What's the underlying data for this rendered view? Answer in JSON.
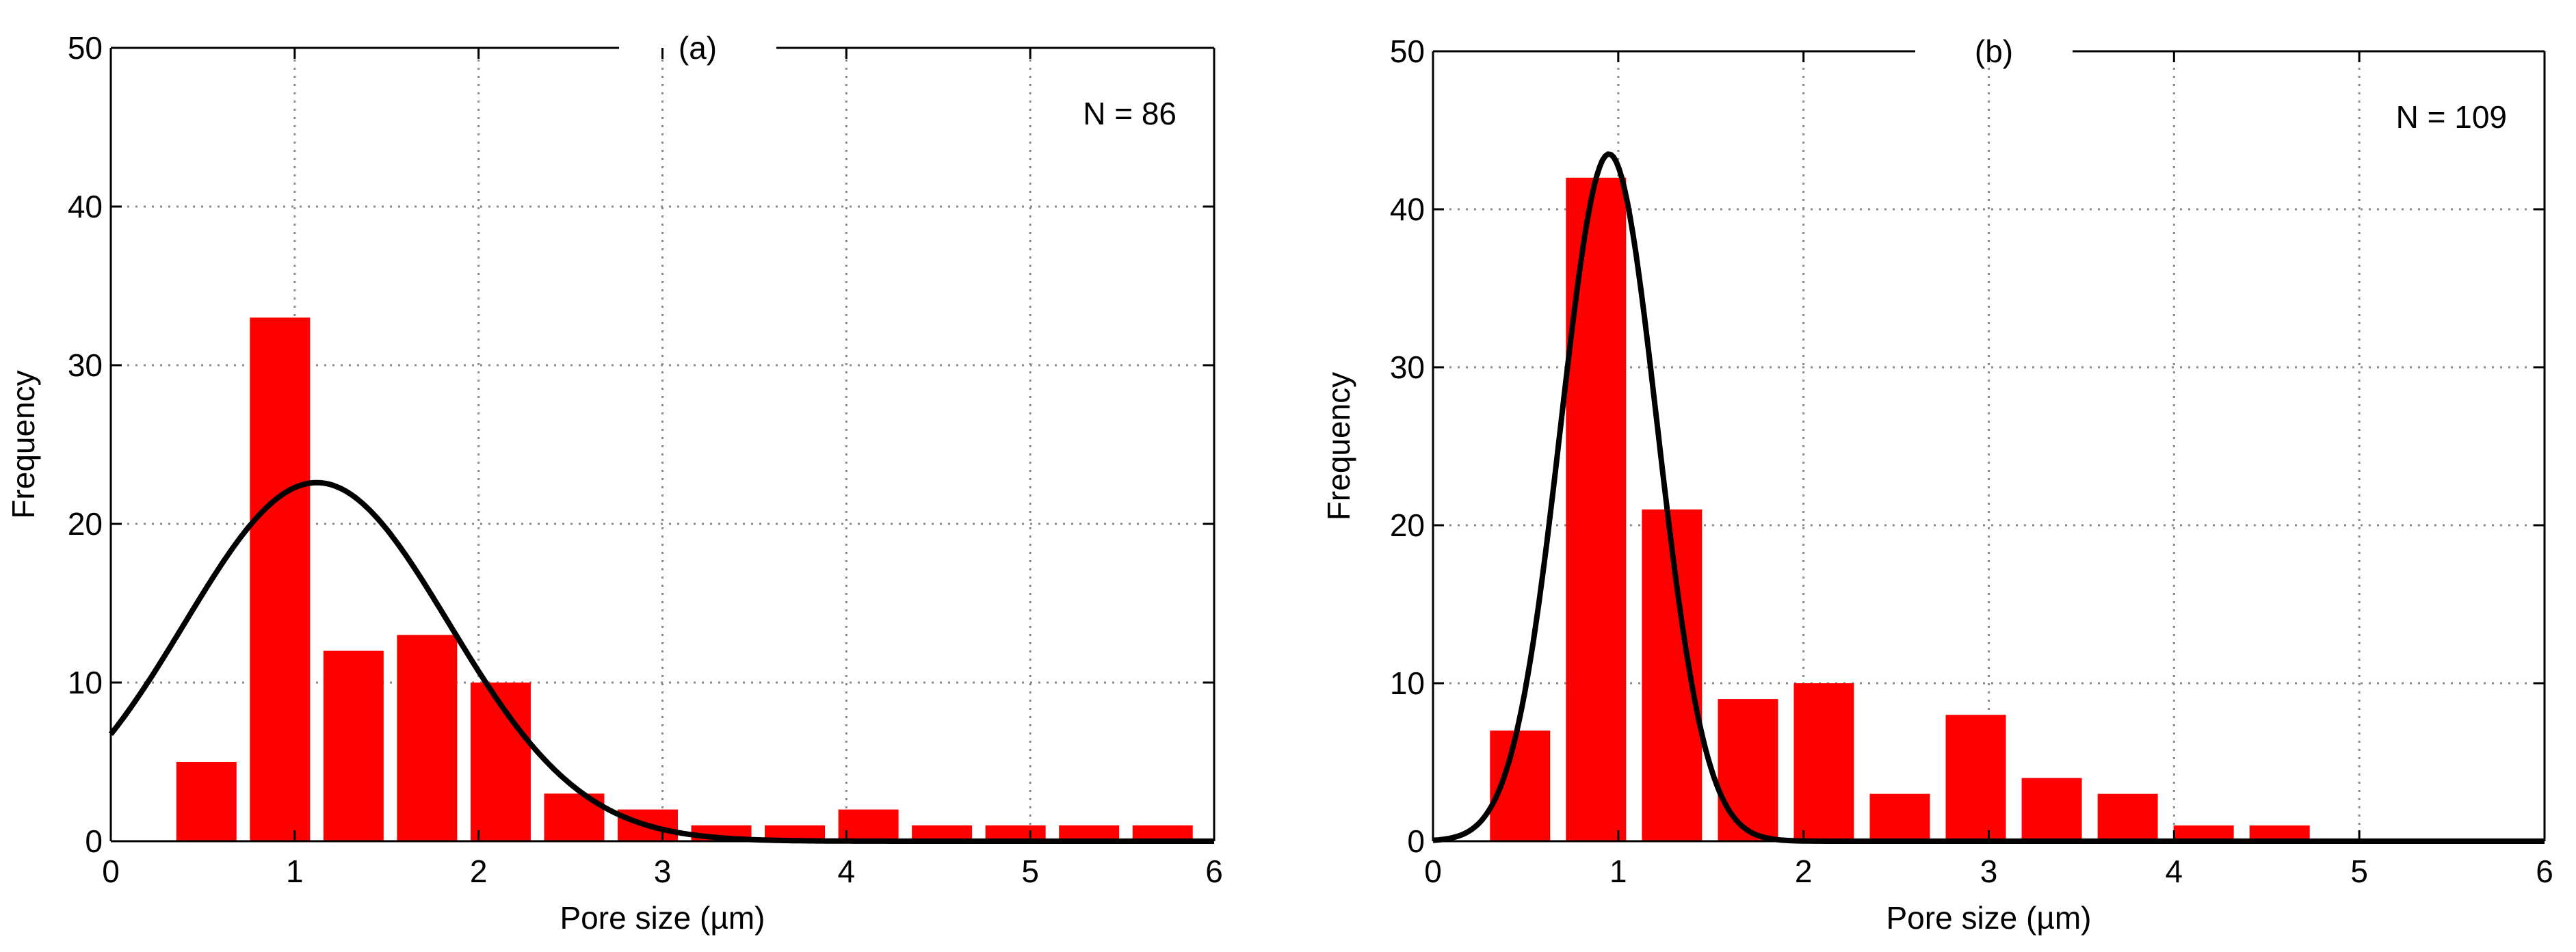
{
  "chart_data": [
    {
      "type": "bar",
      "title": "(a)",
      "annotation": "N = 86",
      "xlabel": "Pore size (µm)",
      "ylabel": "Frequency",
      "xlim": [
        0,
        6
      ],
      "ylim": [
        0,
        50
      ],
      "xticks": [
        "0",
        "1",
        "2",
        "3",
        "4",
        "5",
        "6"
      ],
      "yticks": [
        "0",
        "10",
        "20",
        "30",
        "40",
        "50"
      ],
      "grid": true,
      "bar_color": "#ff0000",
      "curve_color": "#000000",
      "bars": {
        "x": [
          0.52,
          0.92,
          1.32,
          1.72,
          2.12,
          2.52,
          2.92,
          3.32,
          3.72,
          4.12,
          4.52,
          4.92,
          5.32,
          5.72
        ],
        "values": [
          5,
          33,
          12,
          13,
          10,
          3,
          2,
          1,
          1,
          2,
          1,
          1,
          1,
          1
        ]
      },
      "curve": {
        "type": "normal-fit",
        "mean": 1.12,
        "sd": 0.72,
        "peak": 22.6
      }
    },
    {
      "type": "bar",
      "title": "(b)",
      "annotation": "N = 109",
      "xlabel": "Pore size (µm)",
      "ylabel": "Frequency",
      "xlim": [
        0,
        6
      ],
      "ylim": [
        0,
        50
      ],
      "xticks": [
        "0",
        "1",
        "2",
        "3",
        "4",
        "5",
        "6"
      ],
      "yticks": [
        "0",
        "10",
        "20",
        "30",
        "40",
        "50"
      ],
      "grid": true,
      "bar_color": "#ff0000",
      "curve_color": "#000000",
      "bars": {
        "x": [
          0.47,
          0.88,
          1.29,
          1.7,
          2.11,
          2.52,
          2.93,
          3.34,
          3.75,
          4.16,
          4.57
        ],
        "values": [
          7,
          42,
          21,
          9,
          10,
          3,
          8,
          4,
          3,
          1,
          1
        ]
      },
      "curve": {
        "type": "normal-fit",
        "mean": 0.95,
        "sd": 0.26,
        "peak": 43.5
      }
    }
  ]
}
